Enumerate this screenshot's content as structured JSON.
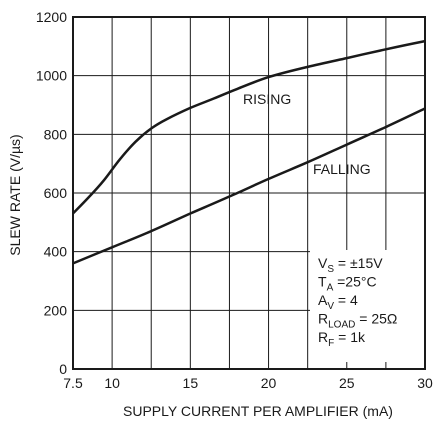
{
  "chart_data": {
    "type": "line",
    "title": "",
    "xlabel": "SUPPLY CURRENT PER AMPLIFIER (mA)",
    "ylabel": "SLEW RATE (V/µs)",
    "xlim": [
      7.5,
      30
    ],
    "ylim": [
      0,
      1200
    ],
    "xticks": [
      7.5,
      10,
      15,
      20,
      25,
      30
    ],
    "xtick_labels": [
      "7.5",
      "10",
      "15",
      "20",
      "25",
      "30"
    ],
    "yticks": [
      0,
      200,
      400,
      600,
      800,
      1000,
      1200
    ],
    "ytick_labels": [
      "0",
      "200",
      "400",
      "600",
      "800",
      "1000",
      "1200"
    ],
    "grid": true,
    "series": [
      {
        "name": "RISING",
        "x": [
          7.5,
          8.5,
          9.5,
          10.5,
          11.5,
          12.5,
          13.5,
          15,
          16.5,
          18,
          20,
          22.5,
          25,
          27.5,
          30
        ],
        "y": [
          530,
          585,
          645,
          715,
          775,
          820,
          852,
          890,
          922,
          955,
          995,
          1030,
          1060,
          1090,
          1118
        ]
      },
      {
        "name": "FALLING",
        "x": [
          7.5,
          10,
          12.5,
          15,
          17.5,
          20,
          22.5,
          25,
          27.5,
          30
        ],
        "y": [
          360,
          415,
          470,
          530,
          588,
          648,
          705,
          765,
          825,
          888
        ]
      }
    ],
    "annotations": {
      "rising_label": "RISING",
      "falling_label": "FALLING"
    },
    "conditions": [
      {
        "main": "V",
        "sub": "S",
        "rest": " = ±15V"
      },
      {
        "main": "T",
        "sub": "A",
        "rest": " =25°C"
      },
      {
        "main": "A",
        "sub": "V",
        "rest": " = 4"
      },
      {
        "main": "R",
        "sub": "LOAD",
        "rest": " = 25Ω"
      },
      {
        "main": "R",
        "sub": "F",
        "rest": " = 1k"
      }
    ]
  }
}
